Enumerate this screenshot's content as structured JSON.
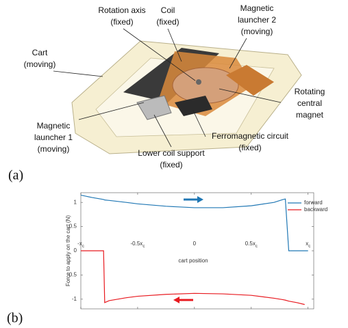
{
  "figure": {
    "panel_a": {
      "label": "(a)",
      "annotations": [
        {
          "lines": [
            "Rotation axis",
            "(fixed)"
          ]
        },
        {
          "lines": [
            "Coil",
            "(fixed)"
          ]
        },
        {
          "lines": [
            "Magnetic",
            "launcher 2",
            "(moving)"
          ]
        },
        {
          "lines": [
            "Cart",
            "(moving)"
          ]
        },
        {
          "lines": [
            "Rotating",
            "central",
            "magnet"
          ]
        },
        {
          "lines": [
            "Magnetic",
            "launcher 1",
            "(moving)"
          ]
        },
        {
          "lines": [
            "Ferromagnetic circuit",
            "(fixed)"
          ]
        },
        {
          "lines": [
            "Lower coil support",
            "(fixed)"
          ]
        }
      ]
    },
    "panel_b": {
      "label": "(b)"
    }
  },
  "chart_data": {
    "type": "line",
    "xlabel": "cart position",
    "ylabel": "Force to apply on the cart (N)",
    "x": [
      -1,
      -0.9,
      -0.8,
      -0.79,
      -0.75,
      -0.6,
      -0.5,
      -0.25,
      0,
      0.25,
      0.5,
      0.7,
      0.78,
      0.8,
      0.83,
      0.9,
      0.97,
      1.0
    ],
    "series": [
      {
        "name": "forward",
        "color": "#1f77b4",
        "values": [
          1.15,
          1.1,
          1.06,
          1.05,
          1.04,
          1.0,
          0.97,
          0.92,
          0.89,
          0.89,
          0.93,
          1.0,
          1.06,
          1.07,
          0,
          0,
          0,
          0
        ]
      },
      {
        "name": "backward",
        "color": "#e8191f",
        "values": [
          0,
          0,
          0,
          -1.07,
          -1.03,
          -0.97,
          -0.94,
          -0.9,
          -0.88,
          -0.89,
          -0.92,
          -0.98,
          -1.01,
          -1.02,
          -1.04,
          -1.07,
          -1.11,
          null
        ]
      }
    ],
    "xlim": [
      -1,
      1.05
    ],
    "ylim": [
      -1.2,
      1.2
    ],
    "xticks": [
      {
        "value": -1,
        "label": "-xc"
      },
      {
        "value": -0.5,
        "label": "-0.5xc"
      },
      0,
      {
        "value": 0.5,
        "label": "0.5xc"
      },
      {
        "value": 1,
        "label": "xc"
      }
    ],
    "yticks": [
      -1,
      -0.5,
      0,
      0.5,
      1
    ],
    "legend": "upper right"
  }
}
